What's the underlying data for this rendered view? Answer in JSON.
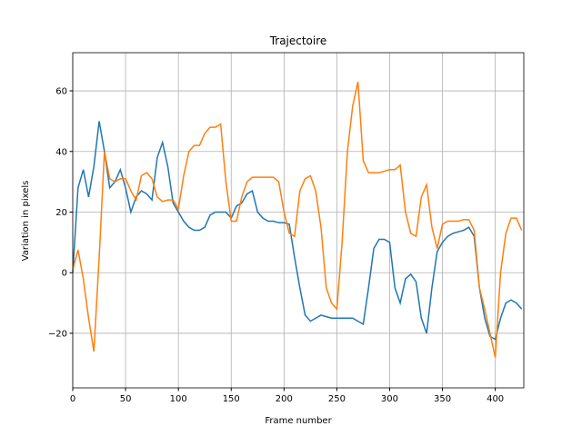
{
  "chart_data": {
    "type": "line",
    "title": "Trajectoire",
    "x_label": "Frame number",
    "y_label": "Variation in pixels",
    "x": [
      0,
      5,
      10,
      15,
      20,
      25,
      30,
      35,
      40,
      45,
      50,
      55,
      60,
      65,
      70,
      75,
      80,
      85,
      90,
      95,
      100,
      105,
      110,
      115,
      120,
      125,
      130,
      135,
      140,
      145,
      150,
      155,
      160,
      165,
      170,
      175,
      180,
      185,
      190,
      195,
      200,
      205,
      210,
      215,
      220,
      225,
      230,
      235,
      240,
      245,
      250,
      255,
      260,
      265,
      270,
      275,
      280,
      285,
      290,
      295,
      300,
      305,
      310,
      315,
      320,
      325,
      330,
      335,
      340,
      345,
      350,
      355,
      360,
      365,
      370,
      375,
      380,
      385,
      390,
      395,
      400,
      405,
      410,
      415,
      420,
      425
    ],
    "series": [
      {
        "color": "#1f77b4",
        "values": [
          0,
          28,
          34,
          25,
          35,
          50,
          40,
          28,
          30,
          34,
          28,
          20,
          25,
          27,
          26,
          24,
          38,
          43,
          35,
          23,
          20,
          17,
          15,
          14,
          14,
          15,
          19,
          20,
          20,
          20,
          18,
          22,
          23,
          26,
          27,
          20,
          18,
          17,
          17,
          16.5,
          16.5,
          16,
          5,
          -5,
          -14,
          -16,
          -15,
          -14,
          -14.5,
          -15,
          -15,
          -15,
          -15,
          -15,
          -16,
          -17,
          -5,
          8,
          11,
          11,
          10,
          -5,
          -10,
          -2,
          -0.5,
          -3,
          -15,
          -20,
          -5,
          7,
          10,
          12,
          13,
          13.5,
          14,
          15,
          12,
          -5,
          -15,
          -21,
          -22,
          -15,
          -10,
          -9,
          -10,
          -12
        ]
      },
      {
        "color": "#ff7f0e",
        "values": [
          1,
          7.5,
          -2,
          -15,
          -26,
          5,
          40,
          31,
          30,
          31,
          31,
          27,
          24,
          32,
          33,
          31,
          25,
          23.5,
          24,
          24,
          21,
          32,
          40,
          42,
          42,
          46,
          48,
          48,
          49,
          30,
          17,
          17,
          25,
          30,
          31.5,
          31.5,
          31.5,
          31.5,
          31.5,
          30,
          20,
          13,
          12,
          27,
          31,
          32,
          27,
          15,
          -5,
          -10,
          -12,
          10,
          40,
          55,
          63,
          37,
          33,
          33,
          33,
          33.5,
          34,
          34,
          35.5,
          20,
          13,
          12,
          25,
          29,
          15,
          8,
          16,
          17,
          17,
          17,
          17.5,
          17.5,
          14,
          -5,
          -12,
          -20,
          -28,
          0,
          13,
          18,
          18,
          14
        ]
      }
    ],
    "xlim": [
      0,
      427
    ],
    "ylim": [
      -38,
      72.6
    ],
    "xticks": [
      0,
      50,
      100,
      150,
      200,
      250,
      300,
      350,
      400
    ],
    "yticks": [
      {
        "value": -20,
        "label": "−20"
      },
      0,
      20,
      40,
      60
    ],
    "grid": true
  }
}
